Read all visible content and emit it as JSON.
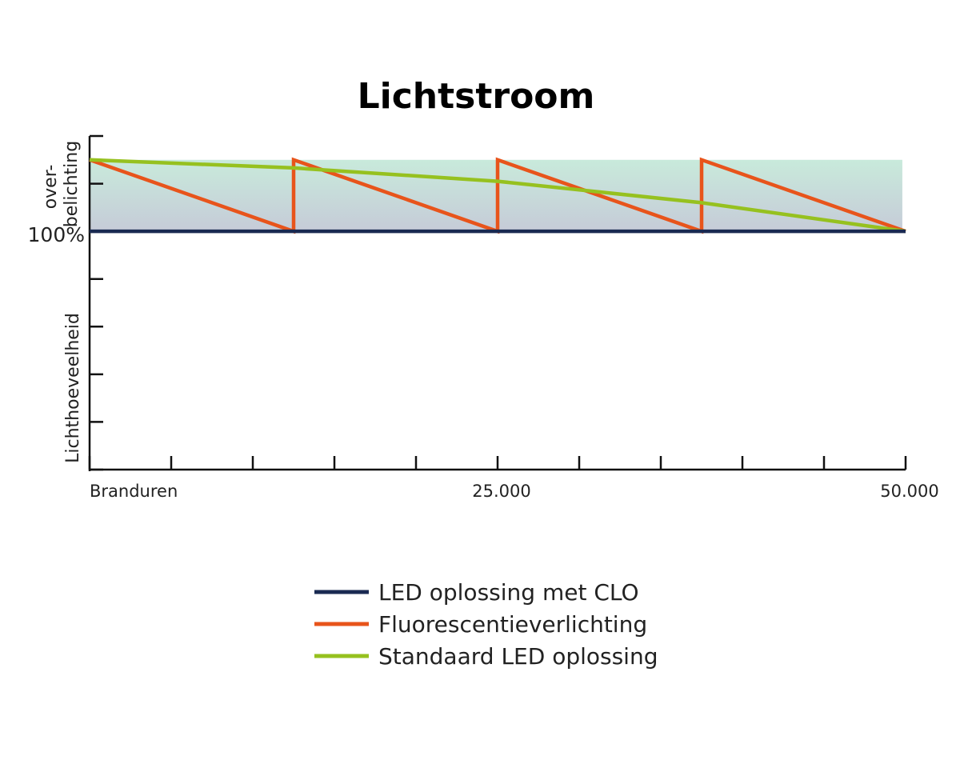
{
  "chart_data": {
    "type": "line",
    "title": "Lichtstroom",
    "xlabel": "Branduren",
    "ylabel": "Lichthoeveelheid",
    "yband_label": "over-\nbelichting",
    "y_reference_label": "100%",
    "xlim": [
      0,
      50000
    ],
    "ylim": [
      50,
      120
    ],
    "x_tick_step": 5000,
    "y_tick_step": 10,
    "x_tick_labels": [
      {
        "x": 0,
        "label": "Branduren"
      },
      {
        "x": 25000,
        "label": "25.000"
      },
      {
        "x": 50000,
        "label": "50.000"
      }
    ],
    "band": {
      "from": 100,
      "to": 115
    },
    "grid": false,
    "legend_position": "bottom",
    "series": [
      {
        "name": "LED oplossing met CLO",
        "color": "#1a2a52",
        "points": [
          [
            0,
            100
          ],
          [
            50000,
            100
          ]
        ]
      },
      {
        "name": "Fluorescentieverlichting",
        "color": "#e8541b",
        "points": [
          [
            0,
            115
          ],
          [
            12500,
            100
          ],
          [
            12500,
            115
          ],
          [
            25000,
            100
          ],
          [
            25000,
            115
          ],
          [
            37500,
            100
          ],
          [
            37500,
            115
          ],
          [
            50000,
            100
          ]
        ]
      },
      {
        "name": "Standaard LED oplossing",
        "color": "#96c11f",
        "points": [
          [
            0,
            115
          ],
          [
            12500,
            113.3
          ],
          [
            25000,
            110.5
          ],
          [
            37500,
            106
          ],
          [
            50000,
            100
          ]
        ]
      }
    ]
  }
}
